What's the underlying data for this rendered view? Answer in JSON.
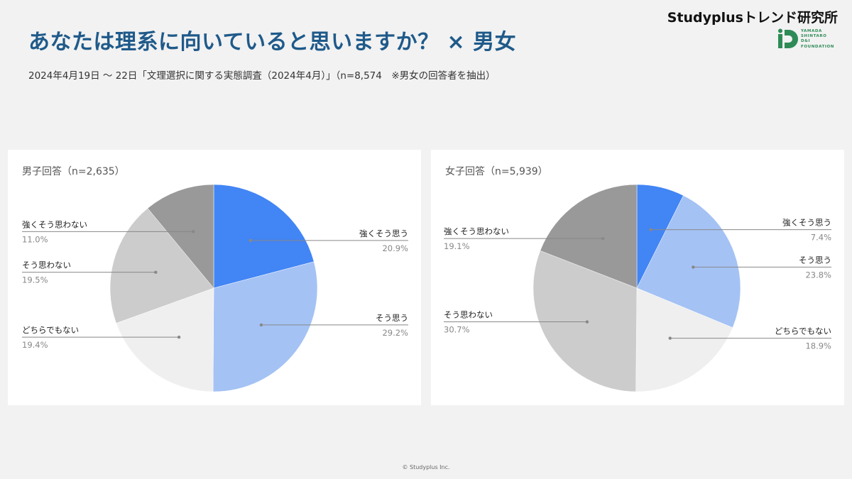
{
  "title": "あなたは理系に向いていると思いますか？ × 男女",
  "subtitle": "2024年4月19日 〜 22日「文理選択に関する実態調査（2024年4月）」（n=8,574　※男女の回答者を抽出）",
  "brand": "Studyplusトレンド研究所",
  "logo_text": [
    "YAMADA",
    "SHINTARO",
    "D&I",
    "FOUNDATION"
  ],
  "footer": "© Studyplus Inc.",
  "colors": {
    "title": "#1f5a8a",
    "strongly_agree": "#4285f4",
    "agree": "#a4c2f4",
    "neutral": "#efefef",
    "disagree": "#cccccc",
    "strongly_disagree": "#999999",
    "logo": "#2e8b57"
  },
  "chart_data": [
    {
      "type": "pie",
      "title": "男子回答（n=2,635）",
      "slices": [
        {
          "label": "強くそう思う",
          "value": 20.9,
          "display": "20.9%",
          "color": "#4285f4"
        },
        {
          "label": "そう思う",
          "value": 29.2,
          "display": "29.2%",
          "color": "#a4c2f4"
        },
        {
          "label": "どちらでもない",
          "value": 19.4,
          "display": "19.4%",
          "color": "#efefef"
        },
        {
          "label": "そう思わない",
          "value": 19.5,
          "display": "19.5%",
          "color": "#cccccc"
        },
        {
          "label": "強くそう思わない",
          "value": 11.0,
          "display": "11.0%",
          "color": "#999999"
        }
      ]
    },
    {
      "type": "pie",
      "title": "女子回答（n=5,939）",
      "slices": [
        {
          "label": "強くそう思う",
          "value": 7.4,
          "display": "7.4%",
          "color": "#4285f4"
        },
        {
          "label": "そう思う",
          "value": 23.8,
          "display": "23.8%",
          "color": "#a4c2f4"
        },
        {
          "label": "どちらでもない",
          "value": 18.9,
          "display": "18.9%",
          "color": "#efefef"
        },
        {
          "label": "そう思わない",
          "value": 30.7,
          "display": "30.7%",
          "color": "#cccccc"
        },
        {
          "label": "強くそう思わない",
          "value": 19.1,
          "display": "19.1%",
          "color": "#999999"
        }
      ]
    }
  ]
}
